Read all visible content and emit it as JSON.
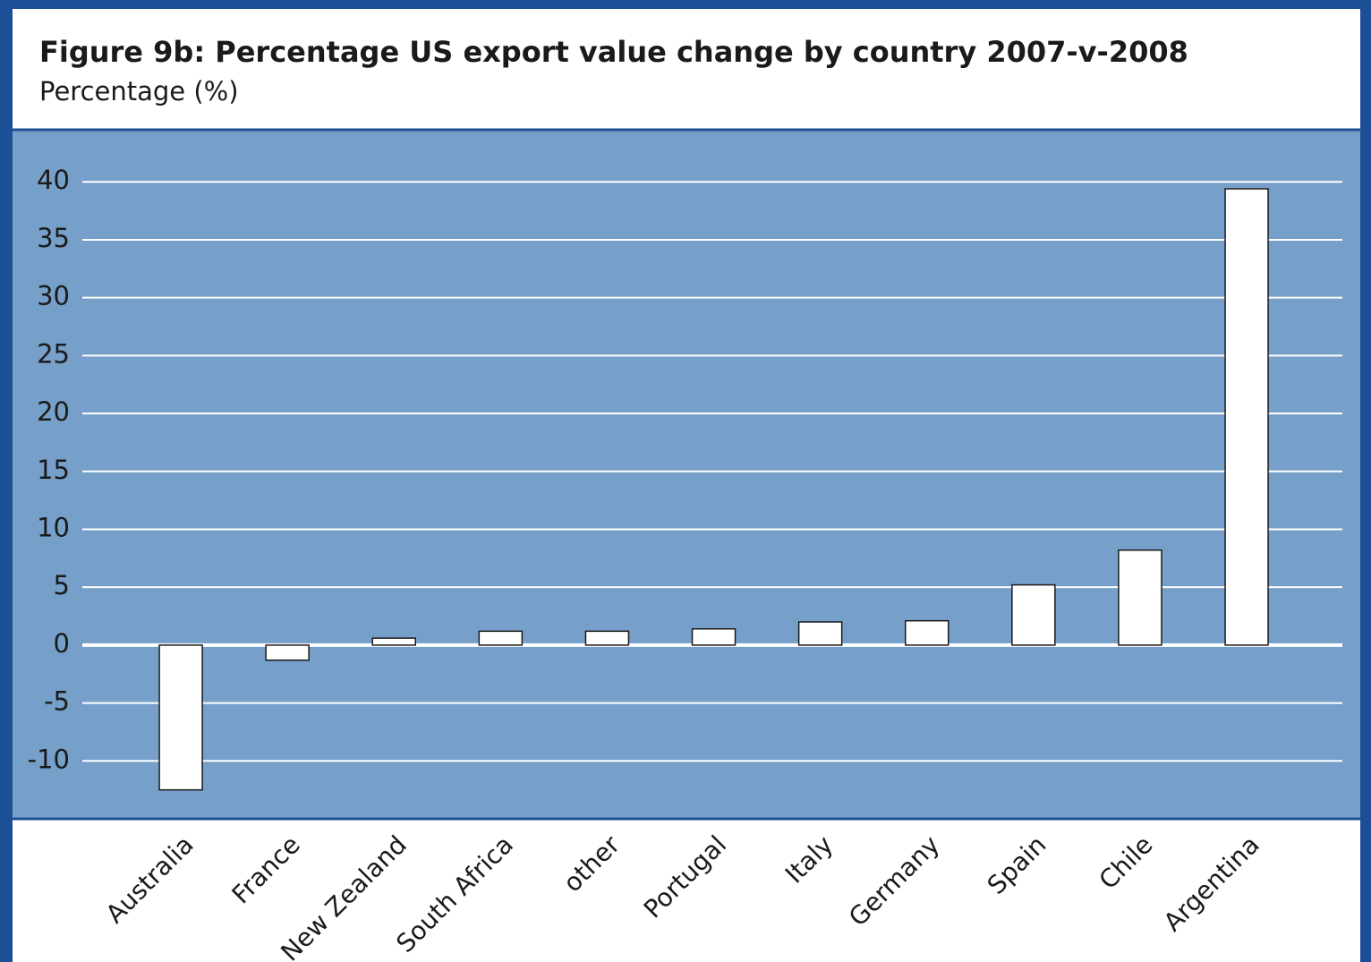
{
  "chart_data": {
    "type": "bar",
    "title": "Figure 9b: Percentage US export value change by country 2007-v-2008",
    "subtitle": "Percentage (%)",
    "categories": [
      "Australia",
      "France",
      "New Zealand",
      "South Africa",
      "other",
      "Portugal",
      "Italy",
      "Germany",
      "Spain",
      "Chile",
      "Argentina"
    ],
    "values": [
      -12.5,
      -1.3,
      0.6,
      1.2,
      1.2,
      1.4,
      2.0,
      2.1,
      5.2,
      8.2,
      39.4
    ],
    "color": "#ffffff",
    "ylim": [
      -15,
      44.5
    ],
    "yticks": [
      -10,
      -5,
      0,
      5,
      10,
      15,
      20,
      25,
      30,
      35,
      40
    ],
    "grid": true
  }
}
